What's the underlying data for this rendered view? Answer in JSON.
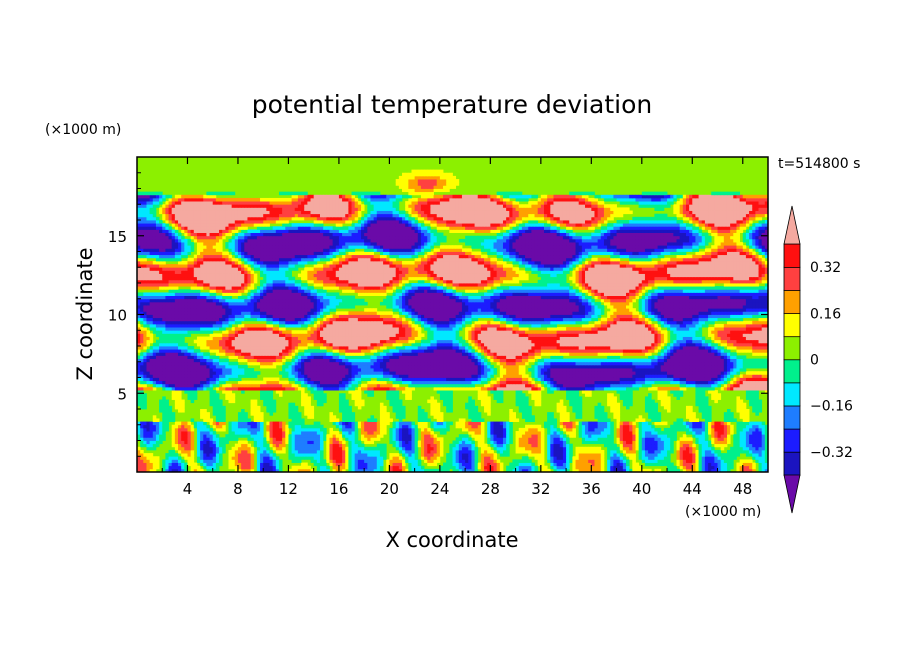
{
  "chart_data": {
    "type": "heatmap",
    "title": "potential temperature deviation",
    "xlabel": "X coordinate",
    "ylabel": "Z coordinate",
    "x_unit": "(×1000 m)",
    "y_unit": "(×1000 m)",
    "time_label": "t=514800 s",
    "xlim": [
      0,
      50
    ],
    "ylim": [
      0,
      20
    ],
    "x_ticks": [
      4,
      8,
      12,
      16,
      20,
      24,
      28,
      32,
      36,
      40,
      44,
      48
    ],
    "y_ticks": [
      5,
      10,
      15
    ],
    "colorbar": {
      "levels": [
        -0.4,
        -0.32,
        -0.24,
        -0.16,
        -0.08,
        0,
        0.08,
        0.16,
        0.24,
        0.32,
        0.4
      ],
      "labeled_values": [
        "0.32",
        "0.16",
        "0",
        "−0.16",
        "−0.32"
      ],
      "colors_low_to_high": [
        "#6a0aa8",
        "#1b14c0",
        "#1c1cff",
        "#1e7dff",
        "#00e8ff",
        "#00f08c",
        "#8cf000",
        "#ffff00",
        "#ffa000",
        "#ff4040",
        "#ff1010",
        "#f5a9a0"
      ],
      "extends": "both"
    }
  }
}
